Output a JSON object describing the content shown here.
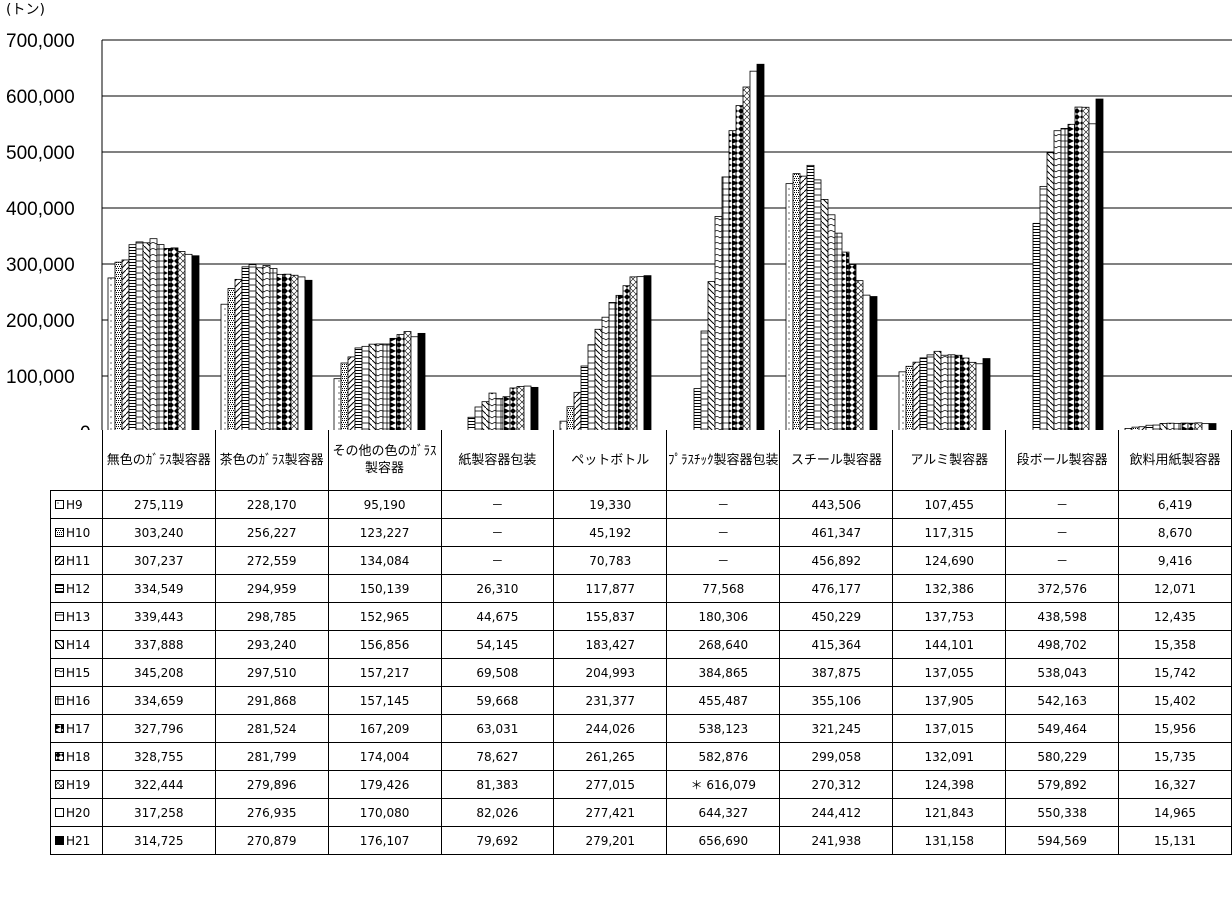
{
  "chart_data": {
    "type": "bar",
    "unit_label": "(トン)",
    "ylim": [
      0,
      700000
    ],
    "yticks": [
      "0",
      "100,000",
      "200,000",
      "300,000",
      "400,000",
      "500,000",
      "600,000",
      "700,000"
    ],
    "categories": [
      "無色のｶﾞﾗｽ製容器",
      "茶色のｶﾞﾗｽ製容器",
      "その他の色のｶﾞﾗｽ製容器",
      "紙製容器包装",
      "ペットボトル",
      "ﾌﾟﾗｽﾁｯｸ製容器包装",
      "スチール製容器",
      "アルミ製容器",
      "段ボール製容器",
      "飲料用紙製容器"
    ],
    "series": [
      {
        "name": "H9",
        "values": [
          275119,
          228170,
          95190,
          null,
          19330,
          null,
          443506,
          107455,
          null,
          6419
        ],
        "labels": [
          "275,119",
          "228,170",
          "95,190",
          "－",
          "19,330",
          "－",
          "443,506",
          "107,455",
          "－",
          "6,419"
        ]
      },
      {
        "name": "H10",
        "values": [
          303240,
          256227,
          123227,
          null,
          45192,
          null,
          461347,
          117315,
          null,
          8670
        ],
        "labels": [
          "303,240",
          "256,227",
          "123,227",
          "－",
          "45,192",
          "－",
          "461,347",
          "117,315",
          "－",
          "8,670"
        ]
      },
      {
        "name": "H11",
        "values": [
          307237,
          272559,
          134084,
          null,
          70783,
          null,
          456892,
          124690,
          null,
          9416
        ],
        "labels": [
          "307,237",
          "272,559",
          "134,084",
          "－",
          "70,783",
          "－",
          "456,892",
          "124,690",
          "－",
          "9,416"
        ]
      },
      {
        "name": "H12",
        "values": [
          334549,
          294959,
          150139,
          26310,
          117877,
          77568,
          476177,
          132386,
          372576,
          12071
        ],
        "labels": [
          "334,549",
          "294,959",
          "150,139",
          "26,310",
          "117,877",
          "77,568",
          "476,177",
          "132,386",
          "372,576",
          "12,071"
        ]
      },
      {
        "name": "H13",
        "values": [
          339443,
          298785,
          152965,
          44675,
          155837,
          180306,
          450229,
          137753,
          438598,
          12435
        ],
        "labels": [
          "339,443",
          "298,785",
          "152,965",
          "44,675",
          "155,837",
          "180,306",
          "450,229",
          "137,753",
          "438,598",
          "12,435"
        ]
      },
      {
        "name": "H14",
        "values": [
          337888,
          293240,
          156856,
          54145,
          183427,
          268640,
          415364,
          144101,
          498702,
          15358
        ],
        "labels": [
          "337,888",
          "293,240",
          "156,856",
          "54,145",
          "183,427",
          "268,640",
          "415,364",
          "144,101",
          "498,702",
          "15,358"
        ]
      },
      {
        "name": "H15",
        "values": [
          345208,
          297510,
          157217,
          69508,
          204993,
          384865,
          387875,
          137055,
          538043,
          15742
        ],
        "labels": [
          "345,208",
          "297,510",
          "157,217",
          "69,508",
          "204,993",
          "384,865",
          "387,875",
          "137,055",
          "538,043",
          "15,742"
        ]
      },
      {
        "name": "H16",
        "values": [
          334659,
          291868,
          157145,
          59668,
          231377,
          455487,
          355106,
          137905,
          542163,
          15402
        ],
        "labels": [
          "334,659",
          "291,868",
          "157,145",
          "59,668",
          "231,377",
          "455,487",
          "355,106",
          "137,905",
          "542,163",
          "15,402"
        ]
      },
      {
        "name": "H17",
        "values": [
          327796,
          281524,
          167209,
          63031,
          244026,
          538123,
          321245,
          137015,
          549464,
          15956
        ],
        "labels": [
          "327,796",
          "281,524",
          "167,209",
          "63,031",
          "244,026",
          "538,123",
          "321,245",
          "137,015",
          "549,464",
          "15,956"
        ]
      },
      {
        "name": "H18",
        "values": [
          328755,
          281799,
          174004,
          78627,
          261265,
          582876,
          299058,
          132091,
          580229,
          15735
        ],
        "labels": [
          "328,755",
          "281,799",
          "174,004",
          "78,627",
          "261,265",
          "582,876",
          "299,058",
          "132,091",
          "580,229",
          "15,735"
        ]
      },
      {
        "name": "H19",
        "values": [
          322444,
          279896,
          179426,
          81383,
          277015,
          616079,
          270312,
          124398,
          579892,
          16327
        ],
        "labels": [
          "322,444",
          "279,896",
          "179,426",
          "81,383",
          "277,015",
          "＊ 616,079",
          "270,312",
          "124,398",
          "579,892",
          "16,327"
        ]
      },
      {
        "name": "H20",
        "values": [
          317258,
          276935,
          170080,
          82026,
          277421,
          644327,
          244412,
          121843,
          550338,
          14965
        ],
        "labels": [
          "317,258",
          "276,935",
          "170,080",
          "82,026",
          "277,421",
          "644,327",
          "244,412",
          "121,843",
          "550,338",
          "14,965"
        ]
      },
      {
        "name": "H21",
        "values": [
          314725,
          270879,
          176107,
          79692,
          279201,
          656690,
          241938,
          131158,
          594569,
          15131
        ],
        "labels": [
          "314,725",
          "270,879",
          "176,107",
          "79,692",
          "279,201",
          "656,690",
          "241,938",
          "131,158",
          "594,569",
          "15,131"
        ]
      }
    ],
    "grid": true,
    "legend": "table-left"
  }
}
